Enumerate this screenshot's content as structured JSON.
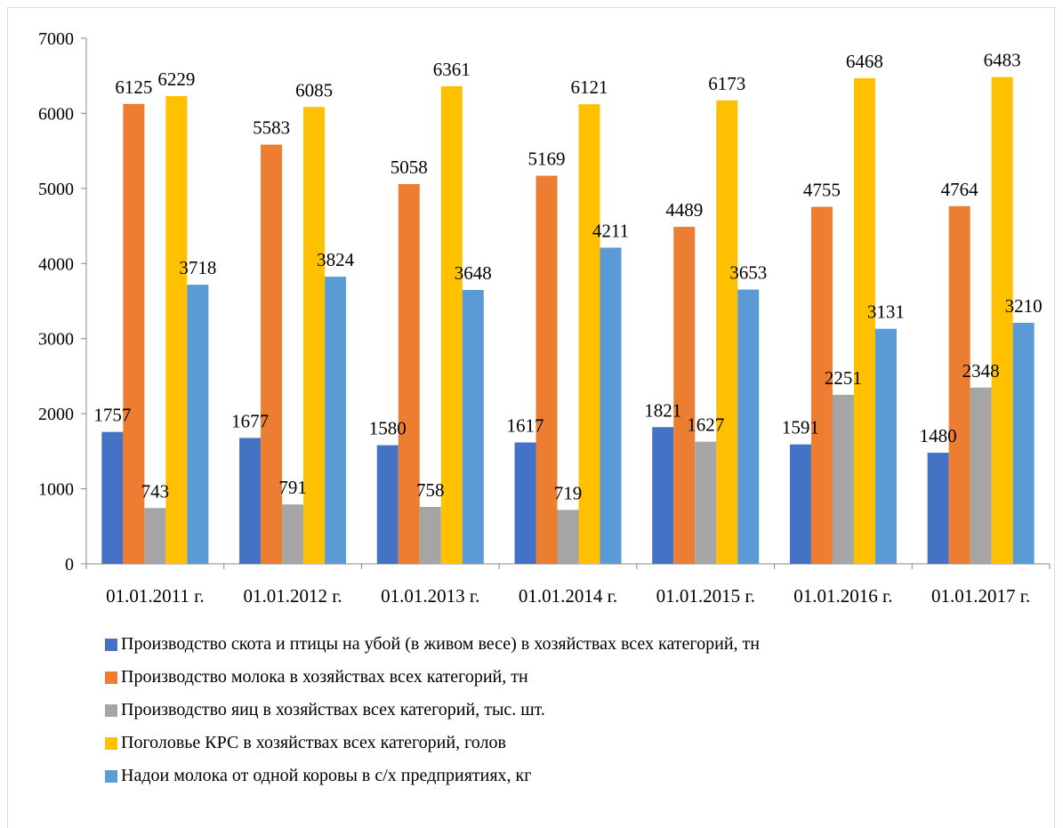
{
  "chart_data": {
    "type": "bar",
    "categories": [
      "01.01.2011 г.",
      "01.01.2012 г.",
      "01.01.2013 г.",
      "01.01.2014 г.",
      "01.01.2015 г.",
      "01.01.2016 г.",
      "01.01.2017 г."
    ],
    "series": [
      {
        "name": "Производство скота и птицы на убой (в живом весе) в хозяйствах всех категорий, тн",
        "color": "#4472C4",
        "values": [
          1757,
          1677,
          1580,
          1617,
          1821,
          1591,
          1480
        ]
      },
      {
        "name": "Производство молока в хозяйствах всех категорий,  тн",
        "color": "#ED7D31",
        "values": [
          6125,
          5583,
          5058,
          5169,
          4489,
          4755,
          4764
        ]
      },
      {
        "name": "Производство яиц в хозяйствах всех категорий, тыс. шт.",
        "color": "#A5A5A5",
        "values": [
          743,
          791,
          758,
          719,
          1627,
          2251,
          2348
        ]
      },
      {
        "name": "Поголовье КРС в  хозяйствах всех категорий, голов",
        "color": "#FFC000",
        "values": [
          6229,
          6085,
          6361,
          6121,
          6173,
          6468,
          6483
        ]
      },
      {
        "name": "Надои молока от одной коровы в с/х предприятиях, кг",
        "color": "#5B9BD5",
        "values": [
          3718,
          3824,
          3648,
          4211,
          3653,
          3131,
          3210
        ]
      }
    ],
    "yticks": [
      0,
      1000,
      2000,
      3000,
      4000,
      5000,
      6000,
      7000
    ],
    "ylim": [
      0,
      7000
    ],
    "grid": false,
    "legend_position": "bottom",
    "data_labels": true
  }
}
